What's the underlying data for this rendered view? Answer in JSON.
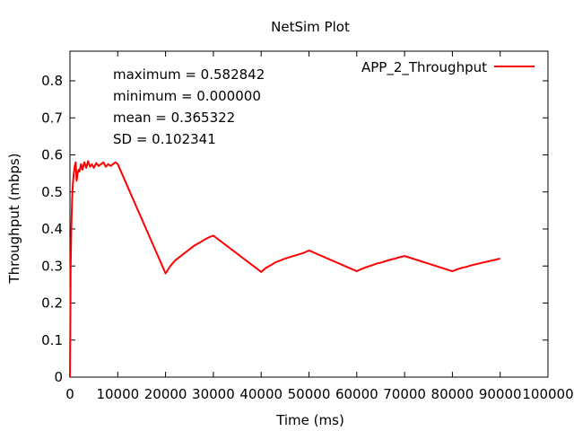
{
  "chart_data": {
    "type": "line",
    "title": "NetSim Plot",
    "xlabel": "Time (ms)",
    "ylabel": "Throughput (mbps)",
    "xlim": [
      0,
      100000
    ],
    "ylim": [
      0,
      0.88
    ],
    "xticks": [
      0,
      10000,
      20000,
      30000,
      40000,
      50000,
      60000,
      70000,
      80000,
      90000,
      100000
    ],
    "yticks": [
      0,
      0.1,
      0.2,
      0.3,
      0.4,
      0.5,
      0.6,
      0.7,
      0.8
    ],
    "xtick_labels": [
      "0",
      "10000",
      "20000",
      "30000",
      "40000",
      "50000",
      "60000",
      "70000",
      "80000",
      "90000",
      "100000"
    ],
    "ytick_labels": [
      "0",
      "0.1",
      "0.2",
      "0.3",
      "0.4",
      "0.5",
      "0.6",
      "0.7",
      "0.8"
    ],
    "grid": false,
    "legend_position": "top-right",
    "stats": [
      "maximum = 0.582842",
      "minimum = 0.000000",
      "mean = 0.365322",
      "SD = 0.102341"
    ],
    "series": [
      {
        "name": "APP_2_Throughput",
        "color": "#ff0000",
        "x": [
          0,
          50,
          150,
          300,
          450,
          600,
          800,
          1000,
          1200,
          1400,
          1600,
          1800,
          2000,
          2300,
          2600,
          3000,
          3400,
          3800,
          4200,
          4600,
          5000,
          5500,
          6000,
          6500,
          7000,
          7500,
          8000,
          8500,
          9000,
          9500,
          10000,
          20000,
          21000,
          22000,
          23000,
          24000,
          25000,
          26000,
          27000,
          28000,
          29000,
          30000,
          40000,
          41000,
          42000,
          43000,
          44000,
          45000,
          46000,
          47000,
          48000,
          49000,
          50000,
          60000,
          61000,
          62000,
          63000,
          64000,
          65000,
          66000,
          67000,
          68000,
          69000,
          70000,
          80000,
          81000,
          82000,
          83000,
          84000,
          85000,
          86000,
          87000,
          88000,
          89000,
          90000
        ],
        "values": [
          0.0,
          0.1,
          0.3,
          0.41,
          0.48,
          0.52,
          0.55,
          0.57,
          0.58,
          0.53,
          0.55,
          0.56,
          0.555,
          0.575,
          0.56,
          0.58,
          0.565,
          0.583,
          0.568,
          0.575,
          0.565,
          0.578,
          0.57,
          0.575,
          0.58,
          0.568,
          0.575,
          0.57,
          0.575,
          0.58,
          0.575,
          0.28,
          0.3,
          0.315,
          0.325,
          0.335,
          0.345,
          0.355,
          0.362,
          0.37,
          0.377,
          0.382,
          0.284,
          0.295,
          0.302,
          0.31,
          0.315,
          0.32,
          0.324,
          0.328,
          0.332,
          0.336,
          0.342,
          0.286,
          0.292,
          0.297,
          0.301,
          0.306,
          0.309,
          0.313,
          0.317,
          0.32,
          0.324,
          0.327,
          0.286,
          0.291,
          0.295,
          0.298,
          0.302,
          0.305,
          0.308,
          0.311,
          0.314,
          0.317,
          0.32
        ]
      }
    ]
  }
}
